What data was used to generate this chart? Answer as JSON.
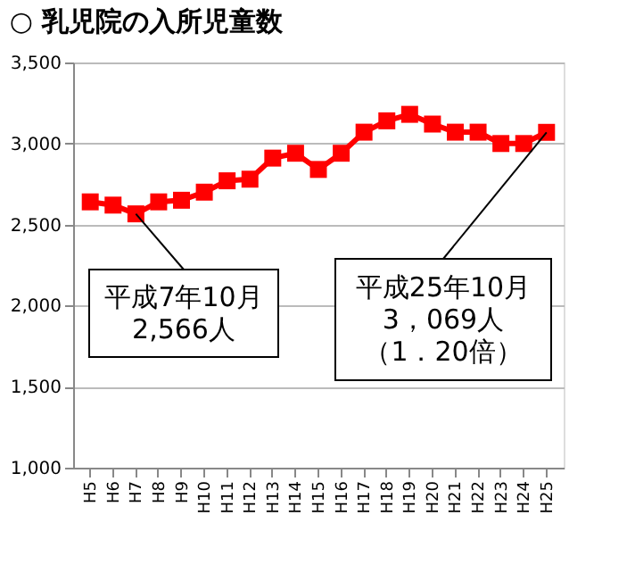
{
  "chart_data": {
    "type": "line",
    "title": "○ 乳児院の入所児童数",
    "categories": [
      "H5",
      "H6",
      "H7",
      "H8",
      "H9",
      "H10",
      "H11",
      "H12",
      "H13",
      "H14",
      "H15",
      "H16",
      "H17",
      "H18",
      "H19",
      "H20",
      "H21",
      "H22",
      "H23",
      "H24",
      "H25"
    ],
    "series": [
      {
        "color": "#ff0000",
        "values": [
          2640,
          2620,
          2566,
          2640,
          2650,
          2700,
          2770,
          2780,
          2910,
          2940,
          2840,
          2940,
          3070,
          3140,
          3180,
          3120,
          3070,
          3070,
          3000,
          3000,
          3069
        ]
      }
    ],
    "ylim": [
      1000,
      3500
    ],
    "yticks": [
      {
        "value": 1000,
        "label": "1,000"
      },
      {
        "value": 1500,
        "label": "1,500"
      },
      {
        "value": 2000,
        "label": "2,000"
      },
      {
        "value": 2500,
        "label": "2,500"
      },
      {
        "value": 3000,
        "label": "3,000"
      },
      {
        "value": 3500,
        "label": "3,500"
      }
    ],
    "grid": "y",
    "marker": "square",
    "line_style": "solid",
    "annotations": [
      {
        "text": "平成7年10月\n2,566人",
        "x": "H7",
        "y": 2566
      },
      {
        "text": "平成25年10月\n3，069人（1．20倍）",
        "x": "H25",
        "y": 3069
      }
    ]
  }
}
